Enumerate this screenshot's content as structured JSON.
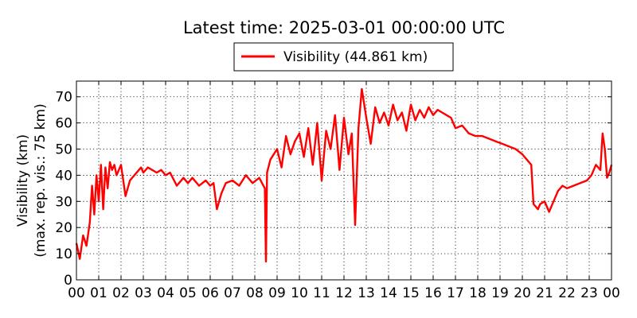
{
  "chart_data": {
    "type": "line",
    "title": "Latest time: 2025-03-01 00:00:00 UTC",
    "ylabel": "Visibility (km)",
    "ylabel2": "(max. rep. vis.: 75 km)",
    "xlabel": "",
    "xlim": [
      0,
      24
    ],
    "ylim": [
      0,
      76
    ],
    "grid": true,
    "legend_position": "top-center",
    "x_tick_labels": [
      "00",
      "01",
      "02",
      "03",
      "04",
      "05",
      "06",
      "07",
      "08",
      "09",
      "10",
      "11",
      "12",
      "13",
      "14",
      "15",
      "16",
      "17",
      "18",
      "19",
      "20",
      "21",
      "22",
      "23",
      "00"
    ],
    "y_ticks": [
      0,
      10,
      20,
      30,
      40,
      50,
      60,
      70
    ],
    "y_tick_labels": [
      "0",
      "10",
      "20",
      "30",
      "40",
      "50",
      "60",
      "70"
    ],
    "series": [
      {
        "name": "Visibility (44.861 km)",
        "color": "#ff0000",
        "x": [
          0.0,
          0.15,
          0.3,
          0.45,
          0.6,
          0.7,
          0.8,
          0.9,
          1.0,
          1.1,
          1.2,
          1.3,
          1.4,
          1.5,
          1.6,
          1.7,
          1.8,
          2.0,
          2.2,
          2.4,
          2.6,
          2.8,
          2.9,
          3.0,
          3.2,
          3.4,
          3.6,
          3.8,
          4.0,
          4.2,
          4.5,
          4.8,
          5.0,
          5.2,
          5.5,
          5.8,
          6.0,
          6.15,
          6.3,
          6.5,
          6.7,
          7.0,
          7.3,
          7.6,
          7.9,
          8.2,
          8.45,
          8.5,
          8.55,
          8.7,
          9.0,
          9.2,
          9.4,
          9.6,
          9.8,
          10.0,
          10.2,
          10.4,
          10.6,
          10.8,
          11.0,
          11.2,
          11.4,
          11.6,
          11.8,
          12.0,
          12.2,
          12.35,
          12.5,
          12.65,
          12.8,
          13.0,
          13.2,
          13.4,
          13.6,
          13.8,
          14.0,
          14.2,
          14.4,
          14.6,
          14.8,
          15.0,
          15.2,
          15.4,
          15.6,
          15.8,
          16.0,
          16.2,
          16.4,
          16.6,
          16.8,
          17.0,
          17.3,
          17.6,
          17.9,
          18.2,
          18.5,
          18.8,
          19.1,
          19.4,
          19.7,
          20.0,
          20.2,
          20.4,
          20.5,
          20.6,
          20.7,
          20.8,
          21.0,
          21.2,
          21.4,
          21.6,
          21.8,
          22.0,
          22.3,
          22.6,
          22.9,
          23.1,
          23.3,
          23.5,
          23.6,
          23.7,
          23.8,
          23.9,
          24.0
        ],
        "values": [
          14,
          8,
          17,
          13,
          22,
          36,
          25,
          40,
          30,
          44,
          27,
          43,
          35,
          45,
          42,
          44,
          40,
          44,
          32,
          38,
          40,
          42,
          43,
          41,
          43,
          42,
          41,
          42,
          40,
          41,
          36,
          39,
          37,
          39,
          36,
          38,
          36,
          37,
          27,
          33,
          37,
          38,
          36,
          40,
          37,
          39,
          35,
          7,
          41,
          46,
          50,
          43,
          55,
          48,
          53,
          56,
          47,
          58,
          44,
          60,
          38,
          57,
          50,
          63,
          42,
          62,
          48,
          56,
          21,
          58,
          73,
          62,
          52,
          66,
          60,
          64,
          59,
          67,
          61,
          64,
          57,
          67,
          61,
          65,
          62,
          66,
          63,
          65,
          64,
          63,
          62,
          58,
          59,
          56,
          55,
          55,
          54,
          53,
          52,
          51,
          50,
          48,
          46,
          44,
          29,
          28,
          27,
          29,
          30,
          26,
          30,
          34,
          36,
          35,
          36,
          37,
          38,
          40,
          44,
          42,
          56,
          50,
          39,
          41,
          44
        ]
      }
    ]
  }
}
